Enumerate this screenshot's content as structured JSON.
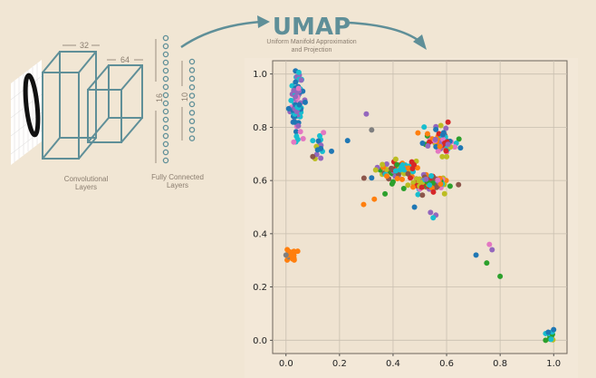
{
  "network": {
    "conv_label_line1": "Convolutional",
    "conv_label_line2": "Layers",
    "fc_label_line1": "Fully Connected",
    "fc_label_line2": "Layers",
    "dim_32": "32",
    "dim_64": "64",
    "dim_16": "16",
    "dim_10": "10"
  },
  "umap": {
    "title": "UMAP",
    "subtitle_line1": "Uniform Manifold Approximation",
    "subtitle_line2": "and Projection"
  },
  "colors": {
    "background": "#f1e6d4",
    "teal": "#5f8f98",
    "series": [
      "#1f77b4",
      "#ff7f0e",
      "#2ca02c",
      "#d62728",
      "#9467bd",
      "#8c564b",
      "#e377c2",
      "#7f7f7f",
      "#bcbd22",
      "#17becf"
    ]
  },
  "chart_data": {
    "type": "scatter",
    "xlim": [
      -0.05,
      1.05
    ],
    "ylim": [
      -0.05,
      1.05
    ],
    "xticks": [
      "0.0",
      "0.2",
      "0.4",
      "0.6",
      "0.8",
      "1.0"
    ],
    "yticks": [
      "0.0",
      "0.2",
      "0.4",
      "0.6",
      "0.8",
      "1.0"
    ],
    "grid": true,
    "clusters": [
      {
        "cx": 0.04,
        "cy": 0.89,
        "sx": 0.012,
        "sy": 0.06,
        "n": 90
      },
      {
        "cx": 0.02,
        "cy": 0.315,
        "sx": 0.01,
        "sy": 0.01,
        "n": 18
      },
      {
        "cx": 0.58,
        "cy": 0.75,
        "sx": 0.025,
        "sy": 0.025,
        "n": 80
      },
      {
        "cx": 0.41,
        "cy": 0.64,
        "sx": 0.035,
        "sy": 0.02,
        "n": 70
      },
      {
        "cx": 0.53,
        "cy": 0.59,
        "sx": 0.035,
        "sy": 0.015,
        "n": 110
      },
      {
        "cx": 0.99,
        "cy": 0.015,
        "sx": 0.007,
        "sy": 0.01,
        "n": 14
      },
      {
        "cx": 0.12,
        "cy": 0.72,
        "sx": 0.01,
        "sy": 0.02,
        "n": 14
      }
    ],
    "points": [
      [
        0.3,
        0.85,
        4
      ],
      [
        0.32,
        0.79,
        7
      ],
      [
        0.1,
        0.75,
        9
      ],
      [
        0.14,
        0.78,
        6
      ],
      [
        0.23,
        0.75,
        0
      ],
      [
        0.13,
        0.72,
        0
      ],
      [
        0.17,
        0.71,
        0
      ],
      [
        0.1,
        0.69,
        5
      ],
      [
        0.01,
        0.87,
        0
      ],
      [
        0.03,
        0.82,
        0
      ],
      [
        0.32,
        0.61,
        0
      ],
      [
        0.33,
        0.53,
        1
      ],
      [
        0.29,
        0.51,
        1
      ],
      [
        0.37,
        0.55,
        2
      ],
      [
        0.48,
        0.5,
        0
      ],
      [
        0.54,
        0.48,
        4
      ],
      [
        0.56,
        0.47,
        4
      ],
      [
        0.55,
        0.46,
        9
      ],
      [
        0.51,
        0.74,
        0
      ],
      [
        0.53,
        0.73,
        4
      ],
      [
        0.71,
        0.32,
        0
      ],
      [
        0.76,
        0.36,
        6
      ],
      [
        0.77,
        0.34,
        4
      ],
      [
        0.75,
        0.29,
        2
      ],
      [
        0.8,
        0.24,
        2
      ],
      [
        0.41,
        0.68,
        8
      ],
      [
        0.36,
        0.66,
        8
      ],
      [
        0.47,
        0.67,
        3
      ],
      [
        0.44,
        0.57,
        2
      ],
      [
        0.98,
        0.03,
        0
      ],
      [
        1.0,
        0.04,
        0
      ],
      [
        0.97,
        0.0,
        2
      ],
      [
        0.0,
        0.32,
        7
      ]
    ]
  }
}
